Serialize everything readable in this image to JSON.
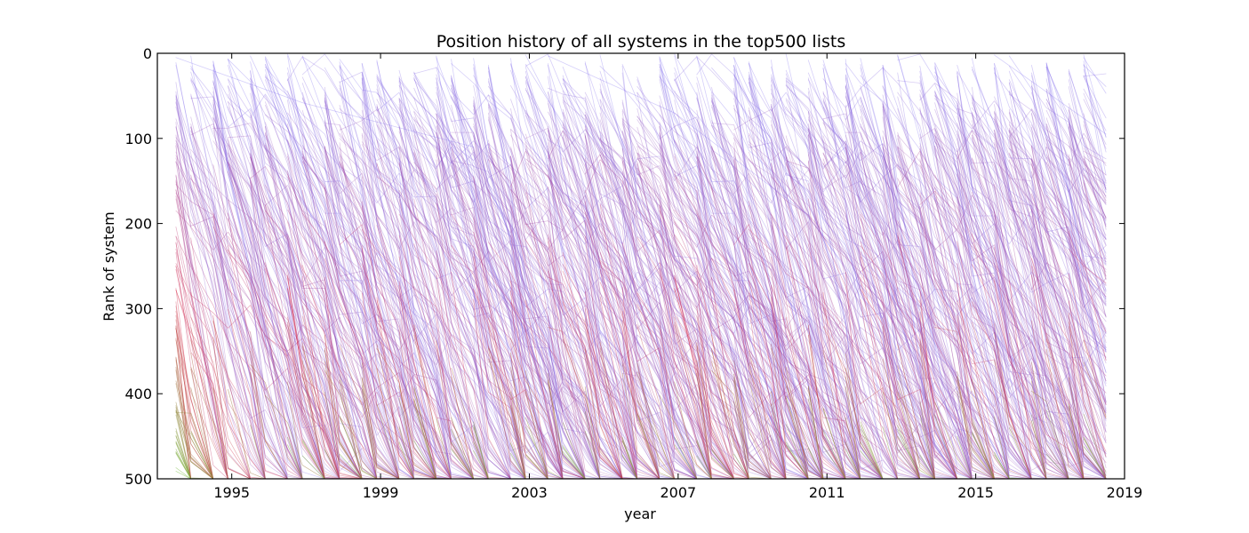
{
  "chart_data": {
    "type": "line",
    "title": "Position history of all systems in the top500 lists",
    "xlabel": "year",
    "ylabel": "Rank of system",
    "xlim": [
      1993,
      2019
    ],
    "ylim": [
      500,
      0
    ],
    "y_axis_inverted": true,
    "x_ticks": [
      1995,
      1999,
      2003,
      2007,
      2011,
      2015,
      2019
    ],
    "x_tick_labels": [
      "1995",
      "1999",
      "2003",
      "2007",
      "2011",
      "2015",
      "2019"
    ],
    "y_ticks": [
      0,
      100,
      200,
      300,
      400,
      500
    ],
    "y_tick_labels": [
      "0",
      "100",
      "200",
      "300",
      "400",
      "500"
    ],
    "grid": false,
    "legend": "none",
    "list_release_years": [
      1993.5,
      1993.9,
      1994.5,
      1994.9,
      1995.5,
      1995.9,
      1996.5,
      1996.9,
      1997.5,
      1997.9,
      1998.5,
      1998.9,
      1999.5,
      1999.9,
      2000.5,
      2000.9,
      2001.5,
      2001.9,
      2002.5,
      2002.9,
      2003.5,
      2003.9,
      2004.5,
      2004.9,
      2005.5,
      2005.9,
      2006.5,
      2006.9,
      2007.5,
      2007.9,
      2008.5,
      2008.9,
      2009.5,
      2009.9,
      2010.5,
      2010.9,
      2011.5,
      2011.9,
      2012.5,
      2012.9,
      2013.5,
      2013.9,
      2014.5,
      2014.9,
      2015.5,
      2015.9,
      2016.5,
      2016.9,
      2017.5,
      2017.9,
      2018.5
    ],
    "color_scale": {
      "top_rank_color": "#7b6cf2",
      "middle_rank_color": "#d6294a",
      "bottom_rank_color": "#6fc13b",
      "description": "line color encodes the rank of the system when it first entered the list"
    },
    "series_sample": [
      {
        "entry_rank": 5,
        "x": [
          1993.5,
          1996.9,
          2001.5
        ],
        "y": [
          5,
          58,
          110
        ]
      },
      {
        "entry_rank": 120,
        "x": [
          1993.5,
          1995.5,
          1997.9
        ],
        "y": [
          120,
          310,
          500
        ]
      },
      {
        "entry_rank": 420,
        "x": [
          1993.5,
          1994.5
        ],
        "y": [
          420,
          500
        ]
      },
      {
        "entry_rank": 3,
        "x": [
          2003.5,
          2006.9,
          2010.5
        ],
        "y": [
          3,
          70,
          190
        ]
      },
      {
        "entry_rank": 2,
        "x": [
          2015.5,
          2018.5
        ],
        "y": [
          2,
          95
        ]
      }
    ]
  }
}
